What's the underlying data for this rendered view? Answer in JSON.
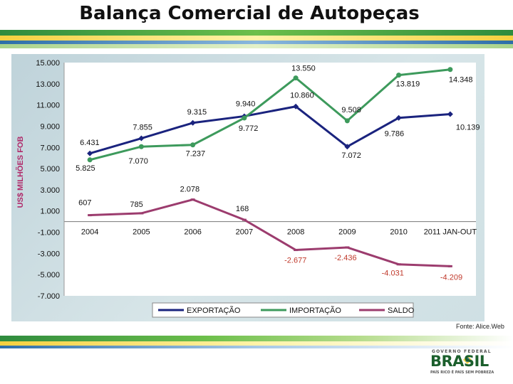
{
  "title": "Balança Comercial de Autopeças",
  "source": "Fonte: Alice.Web",
  "branding": {
    "top": "GOVERNO FEDERAL",
    "word": "BRASIL",
    "motto": "PAÍS RICO É PAÍS SEM POBREZA"
  },
  "colors": {
    "exportacao": "#1a237e",
    "importacao": "#3d9a5c",
    "saldo": "#9c3c6e",
    "stripe_green": "#2e8b3e",
    "stripe_yellow": "#f4d03f",
    "stripe_blue": "#2c6ea8"
  },
  "chart_data": {
    "type": "line",
    "categories": [
      "2004",
      "2005",
      "2006",
      "2007",
      "2008",
      "2009",
      "2010",
      "2011 JAN-OUT"
    ],
    "ylabel": "US$ MILHÕES FOB",
    "ylim": [
      -7000,
      15000
    ],
    "yticks": [
      "15.000",
      "13.000",
      "11.000",
      "9.000",
      "7.000",
      "5.000",
      "3.000",
      "1.000",
      "-1.000",
      "-3.000",
      "-5.000",
      "-7.000"
    ],
    "legend_position": "bottom",
    "series": [
      {
        "name": "EXPORTAÇÃO",
        "values": [
          6431,
          7855,
          9315,
          9940,
          10860,
          7072,
          9786,
          10139
        ],
        "labels": [
          "6.431",
          "7.855",
          "9.315",
          "9.940",
          "10.860",
          "7.072",
          "9.786",
          "10.139"
        ]
      },
      {
        "name": "IMPORTAÇÃO",
        "values": [
          5825,
          7070,
          7237,
          9772,
          13550,
          9508,
          13819,
          14348
        ],
        "labels": [
          "5.825",
          "7.070",
          "7.237",
          "9.772",
          "13.550",
          "9.508",
          "13.819",
          "14.348"
        ]
      },
      {
        "name": "SALDO",
        "values": [
          607,
          785,
          2078,
          168,
          -2677,
          -2436,
          -4031,
          -4209
        ],
        "labels": [
          "607",
          "785",
          "2.078",
          "168",
          "-2.677",
          "-2.436",
          "-4.031",
          "-4.209"
        ]
      }
    ]
  }
}
